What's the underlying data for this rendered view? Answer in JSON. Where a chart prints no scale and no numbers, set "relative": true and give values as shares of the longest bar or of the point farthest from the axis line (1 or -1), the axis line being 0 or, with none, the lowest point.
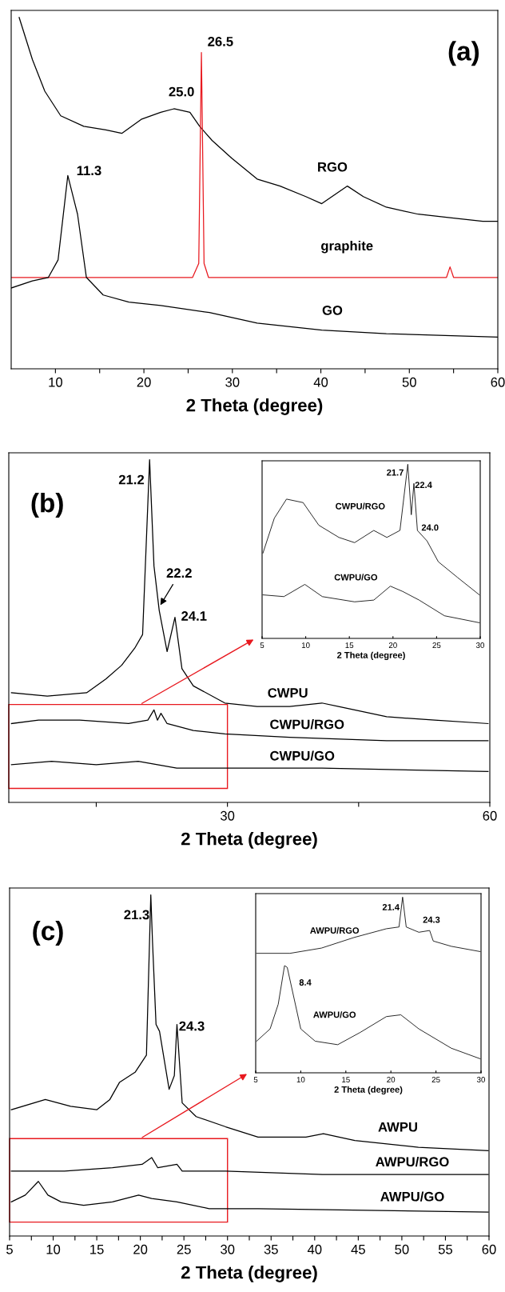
{
  "chart_data": [
    {
      "type": "line",
      "relative": true,
      "xlim": [
        5,
        60
      ],
      "xticks": [
        10,
        {
          "value": 15,
          "label": null
        },
        20,
        {
          "value": 25,
          "label": null
        },
        30,
        {
          "value": 35,
          "label": null
        },
        40,
        {
          "value": 45,
          "label": null
        },
        50,
        {
          "value": 55,
          "label": null
        },
        60
      ],
      "xlabel": "2 Theta (degree)",
      "tick_labels": "x",
      "annotations": [
        "(a)",
        "26.5",
        "25.0",
        "11.3",
        "RGO",
        "graphite",
        "GO"
      ],
      "series": [
        {
          "color": "#000000",
          "x": [
            5.9,
            7.4,
            8.8,
            10.6,
            13.2,
            15.7,
            17.5,
            19.7,
            21.9,
            23.4,
            25.2,
            26.3,
            27.7,
            29.9,
            32.8,
            35.4,
            38.3,
            40.1,
            43.0,
            44.8,
            47.4,
            51.0,
            54.6,
            58.3,
            60
          ],
          "values": [
            1.0,
            0.88,
            0.79,
            0.72,
            0.69,
            0.68,
            0.67,
            0.71,
            0.73,
            0.74,
            0.73,
            0.69,
            0.65,
            0.6,
            0.54,
            0.52,
            0.49,
            0.47,
            0.52,
            0.49,
            0.46,
            0.44,
            0.43,
            0.42,
            0.42
          ]
        },
        {
          "color": "#e8191f",
          "x": [
            5,
            25.5,
            26.2,
            26.5,
            26.8,
            27.3,
            54.2,
            54.6,
            55,
            60
          ],
          "values": [
            0.26,
            0.26,
            0.3,
            0.9,
            0.3,
            0.26,
            0.26,
            0.29,
            0.26,
            0.26
          ]
        },
        {
          "color": "#000000",
          "x": [
            5,
            7.4,
            9.2,
            10.3,
            11.4,
            12.5,
            13.5,
            15.4,
            18.3,
            21.9,
            27.4,
            32.8,
            40.1,
            47.4,
            60
          ],
          "values": [
            0.23,
            0.25,
            0.26,
            0.31,
            0.55,
            0.44,
            0.26,
            0.21,
            0.19,
            0.18,
            0.16,
            0.13,
            0.11,
            0.1,
            0.09
          ]
        }
      ]
    },
    {
      "type": "line",
      "relative": true,
      "xlim": [
        5,
        60
      ],
      "xticks": [
        {
          "value": 15,
          "label": null
        },
        30,
        {
          "value": 45,
          "label": null
        },
        60
      ],
      "xlabel": "2 Theta (degree)",
      "tick_labels": "x",
      "annotations": [
        "(b)",
        "21.2",
        {
          "text": "22.2",
          "x": 22.2,
          "y": 0.57
        },
        "24.1",
        "CWPU",
        "CWPU/RGO",
        "CWPU/GO"
      ],
      "series": [
        {
          "color": "#000000",
          "x": [
            5.3,
            9.4,
            13.9,
            16.1,
            17.9,
            19.4,
            20.3,
            21.1,
            21.6,
            22.2,
            23.1,
            24.0,
            24.8,
            26.1,
            29.7,
            33.4,
            37.1,
            40.8,
            42.7,
            48.2,
            53.7,
            59.8
          ],
          "values": [
            0.32,
            0.31,
            0.32,
            0.36,
            0.4,
            0.45,
            0.49,
            1.0,
            0.69,
            0.56,
            0.44,
            0.54,
            0.39,
            0.34,
            0.29,
            0.28,
            0.28,
            0.29,
            0.28,
            0.25,
            0.24,
            0.23
          ]
        },
        {
          "color": "#000000",
          "x": [
            5.3,
            8.4,
            13.1,
            18.7,
            20.9,
            21.6,
            22.0,
            22.4,
            23.1,
            26.1,
            29.7,
            37.1,
            48.2,
            59.8
          ],
          "values": [
            0.23,
            0.24,
            0.24,
            0.23,
            0.24,
            0.27,
            0.24,
            0.26,
            0.23,
            0.21,
            0.2,
            0.19,
            0.18,
            0.18
          ]
        },
        {
          "color": "#000000",
          "x": [
            5.3,
            9.9,
            15.0,
            19.8,
            24.2,
            29.7,
            40.8,
            59.8
          ],
          "values": [
            0.11,
            0.12,
            0.11,
            0.12,
            0.1,
            0.1,
            0.1,
            0.09
          ]
        }
      ]
    },
    {
      "type": "line",
      "relative": true,
      "xlim": [
        5,
        30
      ],
      "xticks": [
        5,
        10,
        15,
        20,
        25,
        30
      ],
      "xlabel": "2 Theta (degree)",
      "tick_labels": "x",
      "annotations": [
        "21.7",
        "22.4",
        "24.0",
        "CWPU/RGO",
        "CWPU/GO"
      ],
      "series": [
        {
          "color": "#000000",
          "x": [
            5.1,
            6.4,
            7.8,
            9.7,
            11.5,
            13.8,
            15.6,
            17.8,
            19.3,
            20.8,
            21.7,
            22.1,
            22.4,
            22.8,
            23.9,
            25.2,
            27.4,
            29.9
          ],
          "values": [
            0.49,
            0.69,
            0.8,
            0.78,
            0.65,
            0.58,
            0.55,
            0.62,
            0.58,
            0.62,
            1.0,
            0.71,
            0.89,
            0.62,
            0.56,
            0.44,
            0.35,
            0.25
          ]
        },
        {
          "color": "#000000",
          "x": [
            5.1,
            7.5,
            9.9,
            11.9,
            15.6,
            17.8,
            19.7,
            21.1,
            23.0,
            25.9,
            29.9
          ],
          "values": [
            0.25,
            0.24,
            0.31,
            0.24,
            0.21,
            0.22,
            0.3,
            0.27,
            0.22,
            0.13,
            0.09
          ]
        }
      ]
    },
    {
      "type": "line",
      "relative": true,
      "xlim": [
        5,
        60
      ],
      "xticks": [
        5,
        {
          "value": 7.5,
          "label": null
        },
        10,
        {
          "value": 12.5,
          "label": null
        },
        15,
        {
          "value": 17.5,
          "label": null
        },
        20,
        {
          "value": 22.5,
          "label": null
        },
        25,
        {
          "value": 27.5,
          "label": null
        },
        30,
        {
          "value": 32.5,
          "label": null
        },
        35,
        {
          "value": 37.5,
          "label": null
        },
        40,
        {
          "value": 42.5,
          "label": null
        },
        45,
        {
          "value": 47.5,
          "label": null
        },
        50,
        {
          "value": 52.5,
          "label": null
        },
        55,
        {
          "value": 57.5,
          "label": null
        },
        60
      ],
      "xlabel": "2 Theta (degree)",
      "tick_labels": "x",
      "annotations": [
        "(c)",
        "21.3",
        "24.3",
        "AWPU",
        "AWPU/RGO",
        "AWPU/GO"
      ],
      "series": [
        {
          "color": "#000000",
          "x": [
            5.2,
            9.1,
            12.0,
            15.0,
            16.5,
            17.6,
            19.4,
            20.7,
            21.2,
            21.4,
            21.8,
            22.2,
            23.3,
            23.9,
            24.2,
            24.8,
            26.4,
            29.8,
            33.5,
            39.0,
            41.0,
            44.6,
            51.9,
            59.9
          ],
          "values": [
            0.37,
            0.4,
            0.38,
            0.37,
            0.4,
            0.45,
            0.48,
            0.53,
            1.0,
            0.86,
            0.62,
            0.6,
            0.43,
            0.47,
            0.62,
            0.39,
            0.35,
            0.32,
            0.29,
            0.29,
            0.3,
            0.28,
            0.26,
            0.25
          ]
        },
        {
          "color": "#000000",
          "x": [
            5.2,
            11.3,
            16.8,
            20.2,
            21.3,
            22.0,
            24.2,
            24.8,
            29.8,
            40.9,
            59.9
          ],
          "values": [
            0.19,
            0.19,
            0.2,
            0.21,
            0.23,
            0.2,
            0.21,
            0.19,
            0.19,
            0.18,
            0.18
          ]
        },
        {
          "color": "#000000",
          "x": [
            5.2,
            6.8,
            8.3,
            9.4,
            10.9,
            13.5,
            16.8,
            19.8,
            21.3,
            24.2,
            27.9,
            33.5,
            59.9
          ],
          "values": [
            0.1,
            0.12,
            0.16,
            0.12,
            0.1,
            0.09,
            0.1,
            0.12,
            0.11,
            0.1,
            0.08,
            0.08,
            0.07
          ]
        }
      ]
    },
    {
      "type": "line",
      "relative": true,
      "xlim": [
        5,
        30
      ],
      "xticks": [
        5,
        10,
        15,
        20,
        25,
        30
      ],
      "xlabel": "2 Theta (degree)",
      "tick_labels": "x",
      "annotations": [
        "21.4",
        "24.3",
        "8.4",
        "AWPU/RGO",
        "AWPU/GO"
      ],
      "series": [
        {
          "color": "#000000",
          "x": [
            5.1,
            8.8,
            12.3,
            15.9,
            19.5,
            20.9,
            21.3,
            21.7,
            23.1,
            24.3,
            24.7,
            26.7,
            29.9
          ],
          "values": [
            0.68,
            0.68,
            0.71,
            0.77,
            0.82,
            0.83,
            1.0,
            0.83,
            0.8,
            0.81,
            0.75,
            0.72,
            0.69
          ]
        },
        {
          "color": "#000000",
          "x": [
            5.1,
            6.6,
            7.5,
            8.2,
            8.5,
            9.1,
            10.0,
            11.6,
            14.1,
            16.6,
            19.5,
            21.1,
            23.1,
            26.7,
            29.9
          ],
          "values": [
            0.18,
            0.25,
            0.39,
            0.61,
            0.6,
            0.46,
            0.25,
            0.18,
            0.16,
            0.23,
            0.32,
            0.33,
            0.25,
            0.14,
            0.08
          ]
        }
      ]
    }
  ]
}
